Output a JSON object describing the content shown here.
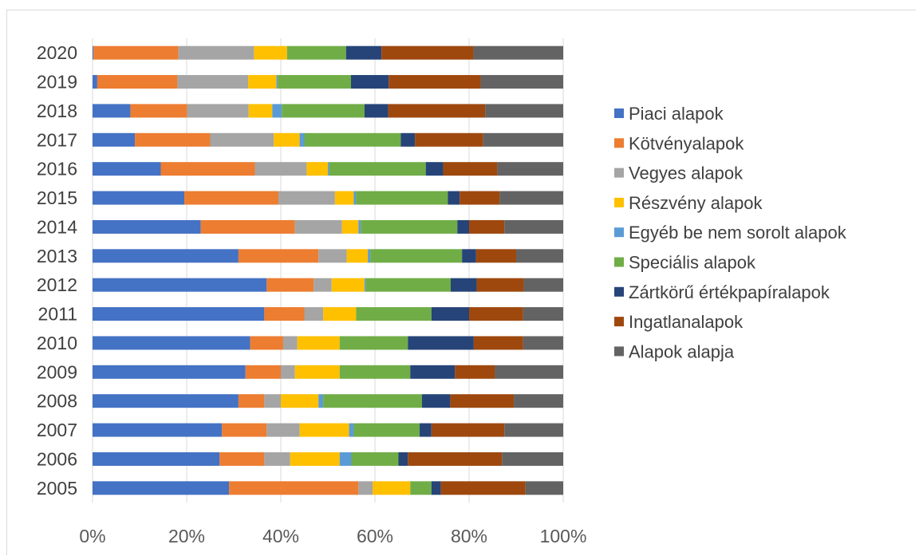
{
  "chart_data": {
    "type": "bar",
    "orientation": "horizontal",
    "stacked": "percent",
    "title": "",
    "xlabel": "",
    "ylabel": "",
    "categories": [
      "2020",
      "2019",
      "2018",
      "2017",
      "2016",
      "2015",
      "2014",
      "2013",
      "2012",
      "2011",
      "2010",
      "2009",
      "2008",
      "2007",
      "2006",
      "2005"
    ],
    "x_ticks": [
      "0%",
      "20%",
      "40%",
      "60%",
      "80%",
      "100%"
    ],
    "xlim": [
      0,
      100
    ],
    "grid": "vertical",
    "legend_position": "right",
    "series": [
      {
        "name": "Piaci alapok",
        "color": "#4472C4",
        "values": [
          0.2,
          1,
          8,
          9,
          14.5,
          19.5,
          23,
          31,
          37,
          36.5,
          33.5,
          32.5,
          31,
          27.5,
          27,
          29
        ]
      },
      {
        "name": "Kötvényalapok",
        "color": "#ED7D31",
        "values": [
          18,
          17,
          12,
          16,
          20,
          20,
          20,
          17,
          10,
          8.5,
          7,
          7.5,
          5.5,
          9.5,
          9.5,
          27.5
        ]
      },
      {
        "name": "Vegyes alapok",
        "color": "#A5A5A5",
        "values": [
          16,
          15,
          13,
          13.5,
          11,
          12,
          10,
          6,
          3.8,
          4,
          3,
          3,
          3.5,
          7,
          5.5,
          3
        ]
      },
      {
        "name": "Részvény alapok",
        "color": "#FFC000",
        "values": [
          7,
          6,
          5,
          5.5,
          4.5,
          4,
          3.5,
          4.5,
          7,
          7,
          9,
          9.5,
          8,
          10.5,
          10.5,
          8
        ]
      },
      {
        "name": "Egyéb be nem sorolt alapok",
        "color": "#5B9BD5",
        "values": [
          0,
          0.3,
          2,
          1,
          0.3,
          0.5,
          0.5,
          0.5,
          0.3,
          0,
          0,
          0,
          1,
          1,
          2.5,
          0
        ]
      },
      {
        "name": "Speciális alapok",
        "color": "#70AD47",
        "values": [
          12.5,
          15.5,
          17.5,
          20.5,
          20.5,
          19.5,
          20.5,
          19.5,
          18,
          16,
          14.5,
          15,
          21,
          14,
          10,
          4.5
        ]
      },
      {
        "name": "Zártkörű értékpapíralapok",
        "color": "#264478",
        "values": [
          7.5,
          8,
          5,
          3,
          3.7,
          2.5,
          2.5,
          3,
          5.5,
          8,
          14,
          9.5,
          6,
          2.5,
          2,
          2
        ]
      },
      {
        "name": "Ingatlanalapok",
        "color": "#9E480E",
        "values": [
          19.5,
          19.5,
          20.5,
          14.5,
          11.5,
          8.5,
          7.5,
          8.5,
          10,
          11.5,
          10.5,
          8.5,
          13.5,
          15.5,
          20,
          18
        ]
      },
      {
        "name": "Alapok alapja",
        "color": "#636363",
        "values": [
          19,
          17.5,
          16.5,
          17,
          14,
          13.5,
          12.5,
          10,
          8.4,
          8.5,
          8.5,
          14.5,
          10.5,
          12.5,
          13,
          8
        ]
      }
    ]
  }
}
